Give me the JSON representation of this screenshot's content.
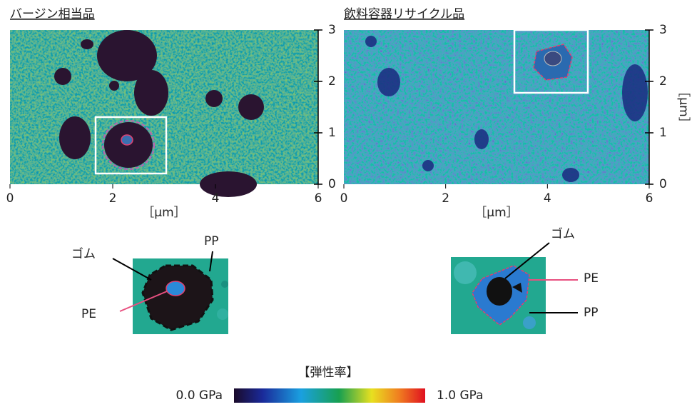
{
  "panels": [
    {
      "title": "バージン相当品",
      "xticks": [
        0,
        2,
        4,
        6
      ],
      "yticks": [
        0,
        1,
        2,
        3
      ],
      "xlabel": "［μm］"
    },
    {
      "title": "飲料容器リサイクル品",
      "xticks": [
        0,
        2,
        4,
        6
      ],
      "yticks": [
        0,
        1,
        2,
        3
      ],
      "xlabel": "［μm］",
      "ylabel": "［μm］"
    }
  ],
  "schematics": [
    {
      "labels": [
        "ゴム",
        "PP",
        "PE"
      ]
    },
    {
      "labels": [
        "ゴム",
        "PE",
        "PP"
      ]
    }
  ],
  "colorbar": {
    "title": "【弾性率】",
    "min_label": "0.0 GPa",
    "max_label": "1.0 GPa"
  }
}
